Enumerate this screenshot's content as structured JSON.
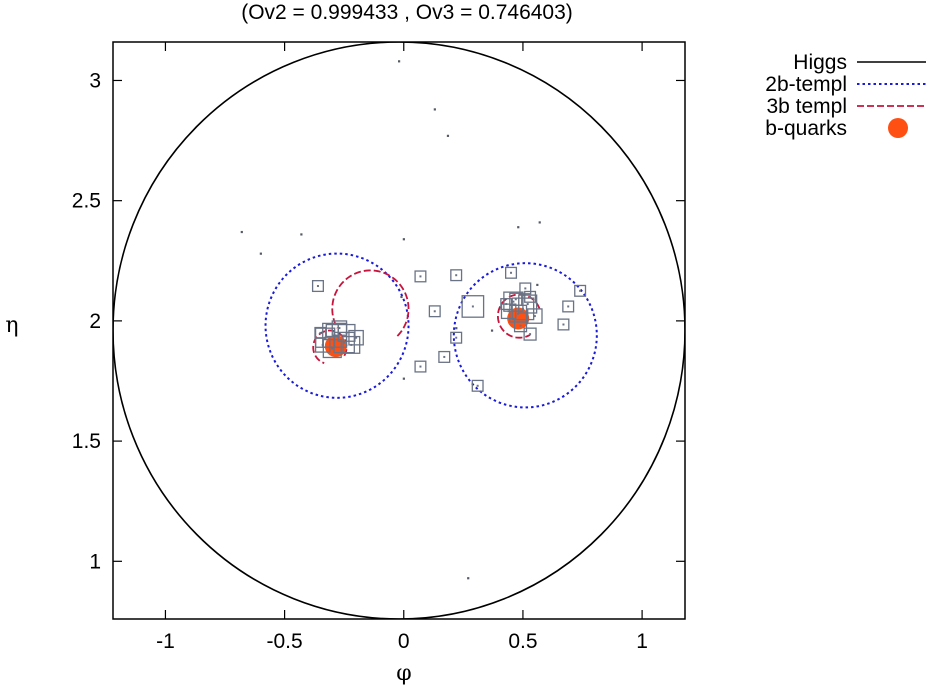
{
  "chart_data": {
    "type": "scatter",
    "title": "(Ov2 = 0.999433 , Ov3 = 0.746403)",
    "xlabel": "φ",
    "ylabel": "η",
    "xlim": [
      -1.22,
      1.18
    ],
    "ylim": [
      0.76,
      3.16
    ],
    "x_ticks": [
      -1,
      -0.5,
      0,
      0.5,
      1
    ],
    "x_tick_labels": [
      "-1",
      "-0.5",
      "0",
      "0.5",
      "1"
    ],
    "y_ticks": [
      1,
      1.5,
      2,
      2.5,
      3
    ],
    "y_tick_labels": [
      "1",
      "1.5",
      "2",
      "2.5",
      "3"
    ],
    "grid": false,
    "legend_position": "outside-top-right",
    "legend": [
      {
        "label": "Higgs",
        "style": "solid",
        "color": "#000000"
      },
      {
        "label": "2b-templ",
        "style": "dotted",
        "color": "#1a1adc"
      },
      {
        "label": "3b templ",
        "style": "dashed",
        "color": "#c8143c"
      },
      {
        "label": "b-quarks",
        "style": "dot",
        "color": "#ff5014"
      }
    ],
    "series": [
      {
        "name": "Higgs",
        "kind": "circle",
        "center": [
          -0.02,
          1.96
        ],
        "radius": 1.2
      },
      {
        "name": "2b-templ",
        "kind": "circles",
        "circles": [
          {
            "center": [
              -0.28,
              1.98
            ],
            "radius": 0.3
          },
          {
            "center": [
              0.51,
              1.94
            ],
            "radius": 0.3
          }
        ]
      },
      {
        "name": "3b templ",
        "kind": "arcs",
        "arcs": [
          {
            "center": [
              -0.14,
              2.05
            ],
            "radius": 0.16,
            "start_deg": 315,
            "end_deg": 210
          },
          {
            "center": [
              -0.31,
              1.89
            ],
            "radius": 0.07,
            "start_deg": 330,
            "end_deg": 250
          },
          {
            "center": [
              0.485,
              2.02
            ],
            "radius": 0.09,
            "start_deg": 20,
            "end_deg": 300
          }
        ]
      },
      {
        "name": "b-quarks",
        "kind": "points",
        "points": [
          [
            -0.285,
            1.895
          ],
          [
            0.48,
            2.01
          ]
        ]
      },
      {
        "name": "particles",
        "kind": "squares",
        "points": [
          [
            -0.36,
            2.145,
            0.045
          ],
          [
            0.07,
            2.185,
            0.045
          ],
          [
            0.22,
            2.19,
            0.045
          ],
          [
            0.13,
            2.04,
            0.045
          ],
          [
            0.29,
            2.06,
            0.09
          ],
          [
            0.45,
            2.2,
            0.045
          ],
          [
            0.51,
            2.135,
            0.045
          ],
          [
            0.74,
            2.125,
            0.045
          ],
          [
            0.69,
            2.06,
            0.045
          ],
          [
            0.67,
            1.985,
            0.045
          ],
          [
            0.53,
            1.945,
            0.05
          ],
          [
            0.22,
            1.93,
            0.045
          ],
          [
            0.17,
            1.85,
            0.045
          ],
          [
            0.07,
            1.81,
            0.045
          ],
          [
            0.31,
            1.73,
            0.045
          ],
          [
            -0.33,
            1.93,
            0.08
          ],
          [
            -0.29,
            1.94,
            0.1
          ],
          [
            -0.25,
            1.91,
            0.085
          ],
          [
            -0.3,
            1.885,
            0.075
          ],
          [
            -0.24,
            1.95,
            0.07
          ],
          [
            -0.34,
            1.9,
            0.06
          ],
          [
            -0.27,
            1.97,
            0.06
          ],
          [
            -0.22,
            1.9,
            0.07
          ],
          [
            -0.3,
            1.96,
            0.05
          ],
          [
            -0.35,
            1.95,
            0.045
          ],
          [
            -0.2,
            1.93,
            0.06
          ],
          [
            0.46,
            2.08,
            0.08
          ],
          [
            0.5,
            2.05,
            0.09
          ],
          [
            0.48,
            2.03,
            0.07
          ],
          [
            0.52,
            2.07,
            0.075
          ],
          [
            0.44,
            2.04,
            0.06
          ],
          [
            0.55,
            2.02,
            0.06
          ],
          [
            0.47,
            2.09,
            0.05
          ],
          [
            0.53,
            2.1,
            0.045
          ],
          [
            0.43,
            2.07,
            0.045
          ],
          [
            0.49,
            1.98,
            0.05
          ]
        ]
      },
      {
        "name": "tiny-particles",
        "kind": "dots",
        "points": [
          [
            -0.02,
            3.08
          ],
          [
            0.13,
            2.88
          ],
          [
            0.185,
            2.77
          ],
          [
            -0.68,
            2.37
          ],
          [
            -0.6,
            2.28
          ],
          [
            -0.43,
            2.36
          ],
          [
            0.48,
            2.39
          ],
          [
            0.57,
            2.41
          ],
          [
            0.0,
            2.34
          ],
          [
            -0.01,
            2.1
          ],
          [
            0.0,
            1.76
          ],
          [
            0.27,
            0.93
          ],
          [
            0.22,
            1.97
          ],
          [
            0.37,
            1.96
          ],
          [
            0.56,
            2.15
          ]
        ]
      }
    ]
  }
}
